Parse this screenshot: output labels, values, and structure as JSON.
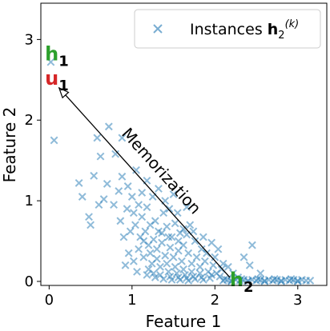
{
  "chart_data": {
    "type": "scatter",
    "xlabel": "Feature 1",
    "ylabel": "Feature 2",
    "xlim": [
      -0.1,
      3.35
    ],
    "ylim": [
      -0.05,
      3.45
    ],
    "xticks": [
      0,
      1,
      2,
      3
    ],
    "yticks": [
      0,
      1,
      2,
      3
    ],
    "grid": false,
    "legend": {
      "position": "top-right",
      "entries": [
        {
          "label": "Instances",
          "math_bold": "h",
          "sub": "2",
          "sup": "(k)"
        }
      ]
    },
    "series": [
      {
        "name": "Instances h2(k)",
        "marker": "x",
        "color": "#1f77b4",
        "points": [
          [
            0.06,
            1.75
          ],
          [
            0.02,
            2.72
          ],
          [
            0.58,
            1.78
          ],
          [
            0.72,
            1.92
          ],
          [
            0.88,
            1.78
          ],
          [
            0.62,
            1.55
          ],
          [
            0.54,
            1.31
          ],
          [
            0.7,
            1.21
          ],
          [
            0.36,
            1.22
          ],
          [
            0.88,
            1.3
          ],
          [
            0.8,
            1.58
          ],
          [
            0.66,
            1.02
          ],
          [
            0.6,
            0.95
          ],
          [
            0.78,
            0.95
          ],
          [
            0.95,
            1.18
          ],
          [
            0.48,
            0.8
          ],
          [
            0.5,
            0.7
          ],
          [
            0.4,
            1.05
          ],
          [
            0.84,
            1.12
          ],
          [
            0.9,
            0.55
          ],
          [
            0.98,
            0.62
          ],
          [
            1.02,
            0.85
          ],
          [
            1.08,
            0.95
          ],
          [
            1.12,
            0.8
          ],
          [
            1.18,
            0.92
          ],
          [
            1.22,
            0.7
          ],
          [
            1.28,
            0.75
          ],
          [
            1.32,
            0.62
          ],
          [
            1.38,
            0.85
          ],
          [
            1.42,
            0.68
          ],
          [
            1.48,
            0.55
          ],
          [
            1.52,
            0.72
          ],
          [
            1.58,
            0.6
          ],
          [
            1.62,
            0.45
          ],
          [
            1.66,
            0.58
          ],
          [
            1.05,
            1.38
          ],
          [
            1.1,
            0.55
          ],
          [
            1.16,
            0.62
          ],
          [
            1.2,
            0.45
          ],
          [
            1.26,
            0.52
          ],
          [
            1.3,
            0.4
          ],
          [
            1.36,
            0.48
          ],
          [
            1.4,
            0.32
          ],
          [
            1.46,
            0.42
          ],
          [
            1.5,
            0.3
          ],
          [
            1.56,
            0.38
          ],
          [
            1.6,
            0.25
          ],
          [
            1.68,
            0.35
          ],
          [
            1.72,
            0.22
          ],
          [
            1.78,
            0.3
          ],
          [
            1.82,
            0.18
          ],
          [
            1.88,
            0.25
          ],
          [
            1.92,
            0.12
          ],
          [
            1.98,
            0.2
          ],
          [
            2.02,
            0.1
          ],
          [
            2.08,
            0.15
          ],
          [
            0.96,
            0.35
          ],
          [
            1.02,
            0.25
          ],
          [
            1.08,
            0.4
          ],
          [
            1.14,
            0.3
          ],
          [
            1.24,
            0.22
          ],
          [
            1.34,
            0.18
          ],
          [
            1.44,
            0.12
          ],
          [
            1.54,
            0.1
          ],
          [
            1.64,
            0.08
          ],
          [
            1.74,
            0.06
          ],
          [
            1.84,
            0.05
          ],
          [
            1.94,
            0.04
          ],
          [
            0.92,
            0.2
          ],
          [
            1.06,
            0.12
          ],
          [
            1.18,
            0.08
          ],
          [
            1.28,
            0.05
          ],
          [
            1.38,
            0.03
          ],
          [
            1.48,
            0.02
          ],
          [
            1.58,
            0.02
          ],
          [
            1.68,
            0.01
          ],
          [
            1.4,
            1.0
          ],
          [
            1.32,
            1.15
          ],
          [
            1.25,
            1.05
          ],
          [
            1.18,
            1.25
          ],
          [
            1.12,
            1.1
          ],
          [
            1.45,
            0.9
          ],
          [
            1.55,
            0.85
          ],
          [
            1.7,
            0.7
          ],
          [
            1.76,
            0.5
          ],
          [
            1.84,
            0.4
          ],
          [
            1.9,
            0.35
          ],
          [
            2.0,
            0.3
          ],
          [
            2.1,
            0.22
          ],
          [
            2.16,
            0.18
          ],
          [
            2.22,
            0.1
          ],
          [
            2.28,
            0.05
          ],
          [
            2.35,
            0.3
          ],
          [
            2.42,
            0.2
          ],
          [
            2.55,
            0.1
          ],
          [
            2.45,
            0.45
          ],
          [
            1.66,
            0.92
          ],
          [
            1.5,
            1.08
          ],
          [
            1.0,
            1.05
          ],
          [
            0.94,
            0.9
          ],
          [
            0.86,
            0.75
          ],
          [
            1.04,
            0.7
          ],
          [
            1.14,
            0.5
          ],
          [
            1.22,
            0.35
          ],
          [
            1.3,
            0.28
          ],
          [
            1.42,
            0.22
          ],
          [
            1.52,
            0.18
          ],
          [
            1.62,
            0.15
          ],
          [
            1.72,
            0.12
          ],
          [
            1.82,
            0.1
          ],
          [
            1.96,
            0.08
          ],
          [
            2.06,
            0.06
          ],
          [
            1.36,
            0.6
          ],
          [
            1.44,
            0.55
          ],
          [
            1.56,
            0.5
          ],
          [
            1.62,
            0.65
          ],
          [
            1.74,
            0.62
          ],
          [
            1.86,
            0.55
          ],
          [
            1.96,
            0.48
          ],
          [
            2.04,
            0.4
          ],
          [
            1.2,
            0.15
          ],
          [
            1.26,
            0.1
          ],
          [
            1.34,
            0.08
          ],
          [
            1.46,
            0.06
          ],
          [
            1.56,
            0.05
          ],
          [
            1.66,
            0.04
          ],
          [
            1.76,
            0.03
          ],
          [
            1.86,
            0.02
          ],
          [
            2.1,
            0.01
          ],
          [
            2.2,
            0.01
          ],
          [
            2.3,
            0.01
          ],
          [
            2.4,
            0.01
          ],
          [
            2.5,
            0.01
          ],
          [
            2.6,
            0.01
          ],
          [
            2.7,
            0.01
          ],
          [
            2.8,
            0.01
          ],
          [
            2.9,
            0.01
          ],
          [
            3.0,
            0.01
          ],
          [
            3.1,
            0.01
          ],
          [
            3.15,
            0.01
          ],
          [
            2.15,
            0.02
          ],
          [
            2.25,
            0.02
          ],
          [
            2.35,
            0.02
          ],
          [
            2.45,
            0.02
          ],
          [
            2.55,
            0.02
          ],
          [
            2.65,
            0.02
          ],
          [
            2.75,
            0.02
          ],
          [
            2.85,
            0.02
          ],
          [
            2.95,
            0.02
          ],
          [
            3.05,
            0.02
          ],
          [
            2.2,
            0.0
          ],
          [
            2.4,
            0.0
          ],
          [
            2.6,
            0.0
          ],
          [
            2.8,
            0.0
          ],
          [
            3.0,
            0.0
          ],
          [
            2.12,
            0.03
          ],
          [
            2.32,
            0.03
          ],
          [
            2.52,
            0.03
          ],
          [
            2.72,
            0.03
          ],
          [
            2.92,
            0.03
          ]
        ]
      }
    ],
    "annotations": [
      {
        "text": "h",
        "sub": "1",
        "x": -0.05,
        "y": 2.82,
        "color": "#2ca02c"
      },
      {
        "text": "u",
        "sub": "1",
        "x": -0.05,
        "y": 2.52,
        "color": "#d62728"
      },
      {
        "text": "h",
        "sub": "2",
        "x": 2.18,
        "y": 0.02,
        "color": "#2ca02c"
      },
      {
        "text": "Memorization",
        "type": "arrow",
        "from": [
          2.18,
          0.05
        ],
        "to": [
          0.12,
          2.4
        ]
      }
    ]
  }
}
